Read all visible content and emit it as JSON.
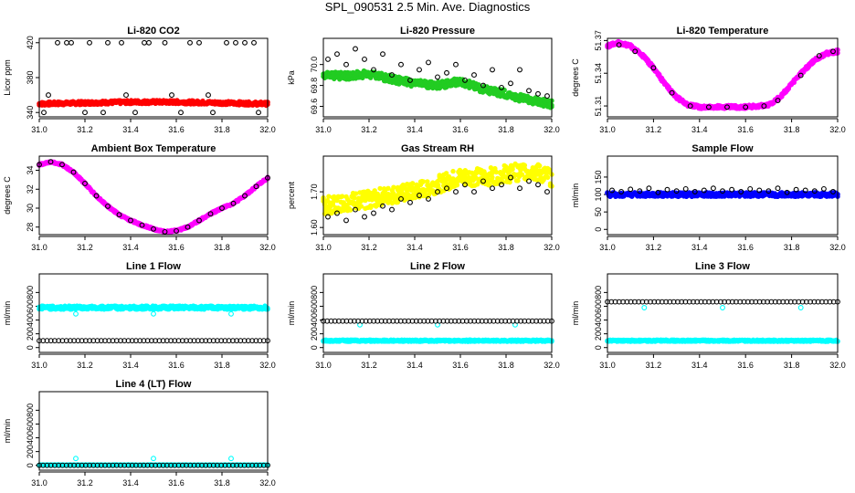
{
  "figure": {
    "title": "SPL_090531  2.5 Min. Ave. Diagnostics"
  },
  "colors": {
    "red": "#ff0000",
    "green": "#22cc22",
    "magenta": "#ff00ff",
    "yellow": "#ffff00",
    "blue": "#0000ff",
    "cyan": "#00ffff",
    "black": "#000000"
  },
  "chart_data": [
    {
      "type": "scatter",
      "title": "Li-820 CO2",
      "ylabel": "Licor ppm",
      "xlim": [
        31.0,
        32.0
      ],
      "ylim": [
        335,
        425
      ],
      "xticks": [
        "31.0",
        "31.2",
        "31.4",
        "31.6",
        "31.8",
        "32.0"
      ],
      "yticks": [
        {
          "v": 340,
          "t": "340"
        },
        {
          "v": 380,
          "t": "380"
        },
        {
          "v": 420,
          "t": "420"
        }
      ],
      "series": [
        {
          "color": "red",
          "style": "dense",
          "x": [
            31.0,
            31.2,
            31.4,
            31.6,
            31.8,
            32.0
          ],
          "y": [
            350,
            351,
            352,
            352,
            351,
            350
          ],
          "spread": 2
        },
        {
          "color": "black",
          "style": "points",
          "x": [
            31.02,
            31.08,
            31.14,
            31.22,
            31.28,
            31.36,
            31.42,
            31.48,
            31.55,
            31.62,
            31.7,
            31.76,
            31.82,
            31.9,
            31.96,
            31.04,
            31.12,
            31.2,
            31.3,
            31.38,
            31.46,
            31.58,
            31.66,
            31.74,
            31.86,
            31.94
          ],
          "y": [
            340,
            420,
            420,
            420,
            340,
            420,
            340,
            420,
            420,
            340,
            420,
            340,
            420,
            420,
            340,
            360,
            420,
            340,
            420,
            360,
            420,
            360,
            420,
            360,
            420,
            420
          ]
        }
      ]
    },
    {
      "type": "scatter",
      "title": "Li-820 Pressure",
      "ylabel": "kPa",
      "xlim": [
        31.0,
        32.0
      ],
      "ylim": [
        69.5,
        70.25
      ],
      "xticks": [
        "31.0",
        "31.2",
        "31.4",
        "31.6",
        "31.8",
        "32.0"
      ],
      "yticks": [
        {
          "v": 69.6,
          "t": "69.6"
        },
        {
          "v": 69.8,
          "t": "69.8"
        },
        {
          "v": 70.0,
          "t": "70.0"
        }
      ],
      "series": [
        {
          "color": "green",
          "style": "dense",
          "x": [
            31.0,
            31.1,
            31.2,
            31.3,
            31.4,
            31.5,
            31.6,
            31.7,
            31.8,
            31.9,
            32.0
          ],
          "y": [
            69.9,
            69.89,
            69.91,
            69.86,
            69.82,
            69.8,
            69.84,
            69.76,
            69.72,
            69.66,
            69.62
          ],
          "spread": 0.035
        },
        {
          "color": "black",
          "style": "points",
          "x": [
            31.02,
            31.06,
            31.1,
            31.14,
            31.18,
            31.22,
            31.26,
            31.3,
            31.34,
            31.38,
            31.42,
            31.46,
            31.5,
            31.54,
            31.58,
            31.62,
            31.66,
            31.7,
            31.74,
            31.78,
            31.82,
            31.86,
            31.9,
            31.94,
            31.98
          ],
          "y": [
            70.05,
            70.1,
            70.0,
            70.15,
            70.05,
            69.95,
            70.1,
            69.9,
            70.0,
            69.85,
            69.95,
            70.02,
            69.88,
            69.92,
            70.0,
            69.85,
            69.9,
            69.8,
            69.95,
            69.78,
            69.82,
            69.95,
            69.75,
            69.72,
            69.7
          ]
        }
      ]
    },
    {
      "type": "scatter",
      "title": "Li-820 Temperature",
      "ylabel": "degrees C",
      "xlim": [
        31.0,
        32.0
      ],
      "ylim": [
        51.3,
        51.372
      ],
      "xticks": [
        "31.0",
        "31.2",
        "31.4",
        "31.6",
        "31.8",
        "32.0"
      ],
      "yticks": [
        {
          "v": 51.31,
          "t": "51.31"
        },
        {
          "v": 51.34,
          "t": "51.34"
        },
        {
          "v": 51.37,
          "t": "51.37"
        }
      ],
      "series": [
        {
          "color": "magenta",
          "style": "dense",
          "x": [
            31.0,
            31.05,
            31.1,
            31.15,
            31.2,
            31.25,
            31.3,
            31.35,
            31.4,
            31.5,
            31.6,
            31.7,
            31.75,
            31.8,
            31.85,
            31.9,
            31.95,
            32.0
          ],
          "y": [
            51.365,
            51.368,
            51.365,
            51.357,
            51.345,
            51.33,
            51.318,
            51.311,
            51.309,
            51.309,
            51.309,
            51.311,
            51.318,
            51.33,
            51.342,
            51.352,
            51.358,
            51.36
          ],
          "spread": 0.0015
        },
        {
          "color": "black",
          "style": "points",
          "x": [
            31.05,
            31.12,
            31.2,
            31.28,
            31.36,
            31.44,
            31.52,
            31.6,
            31.68,
            31.74,
            31.84,
            31.92,
            31.98
          ],
          "y": [
            51.366,
            51.36,
            51.345,
            51.322,
            51.31,
            51.309,
            51.309,
            51.309,
            51.31,
            51.315,
            51.338,
            51.356,
            51.36
          ]
        }
      ]
    },
    {
      "type": "scatter",
      "title": "Ambient Box Temperature",
      "ylabel": "degrees C",
      "xlim": [
        31.0,
        32.0
      ],
      "ylim": [
        27.2,
        35.5
      ],
      "xticks": [
        "31.0",
        "31.2",
        "31.4",
        "31.6",
        "31.8",
        "32.0"
      ],
      "yticks": [
        {
          "v": 28,
          "t": "28"
        },
        {
          "v": 30,
          "t": "30"
        },
        {
          "v": 32,
          "t": "32"
        },
        {
          "v": 34,
          "t": "34"
        }
      ],
      "series": [
        {
          "color": "magenta",
          "style": "dense",
          "x": [
            31.0,
            31.05,
            31.1,
            31.15,
            31.2,
            31.25,
            31.3,
            31.35,
            31.4,
            31.45,
            31.5,
            31.55,
            31.6,
            31.65,
            31.7,
            31.75,
            31.8,
            31.85,
            31.9,
            31.95,
            32.0
          ],
          "y": [
            34.6,
            34.9,
            34.6,
            33.8,
            32.6,
            31.3,
            30.2,
            29.3,
            28.7,
            28.2,
            27.8,
            27.5,
            27.6,
            28.0,
            28.7,
            29.4,
            30.0,
            30.5,
            31.3,
            32.3,
            33.2
          ],
          "spread": 0.1
        },
        {
          "color": "black",
          "style": "points",
          "x": [
            31.0,
            31.05,
            31.1,
            31.15,
            31.2,
            31.25,
            31.3,
            31.35,
            31.4,
            31.45,
            31.5,
            31.55,
            31.6,
            31.65,
            31.7,
            31.75,
            31.8,
            31.85,
            31.9,
            31.95,
            32.0
          ],
          "y": [
            34.6,
            34.9,
            34.6,
            33.8,
            32.6,
            31.3,
            30.2,
            29.3,
            28.7,
            28.2,
            27.8,
            27.5,
            27.6,
            28.0,
            28.7,
            29.4,
            30.0,
            30.5,
            31.3,
            32.3,
            33.2
          ]
        }
      ]
    },
    {
      "type": "scatter",
      "title": "Gas Stream RH",
      "ylabel": "percent",
      "xlim": [
        31.0,
        32.0
      ],
      "ylim": [
        1.58,
        1.8
      ],
      "xticks": [
        "31.0",
        "31.2",
        "31.4",
        "31.6",
        "31.8",
        "32.0"
      ],
      "yticks": [
        {
          "v": 1.6,
          "t": "1.60"
        },
        {
          "v": 1.7,
          "t": "1.70"
        }
      ],
      "series": [
        {
          "color": "yellow",
          "style": "dense",
          "x": [
            31.0,
            31.1,
            31.2,
            31.3,
            31.4,
            31.5,
            31.6,
            31.7,
            31.8,
            31.9,
            32.0
          ],
          "y": [
            1.66,
            1.67,
            1.68,
            1.69,
            1.7,
            1.72,
            1.74,
            1.74,
            1.75,
            1.76,
            1.74
          ],
          "spread": 0.025
        },
        {
          "color": "black",
          "style": "points",
          "x": [
            31.02,
            31.06,
            31.1,
            31.14,
            31.18,
            31.22,
            31.26,
            31.3,
            31.34,
            31.38,
            31.42,
            31.46,
            31.5,
            31.54,
            31.58,
            31.62,
            31.66,
            31.7,
            31.74,
            31.78,
            31.82,
            31.86,
            31.9,
            31.94,
            31.98
          ],
          "y": [
            1.63,
            1.64,
            1.62,
            1.65,
            1.63,
            1.64,
            1.66,
            1.65,
            1.68,
            1.67,
            1.69,
            1.68,
            1.7,
            1.71,
            1.7,
            1.72,
            1.7,
            1.73,
            1.71,
            1.72,
            1.74,
            1.71,
            1.73,
            1.72,
            1.7
          ]
        }
      ]
    },
    {
      "type": "scatter",
      "title": "Sample Flow",
      "ylabel": "ml/min",
      "xlim": [
        31.0,
        32.0
      ],
      "ylim": [
        -15,
        210
      ],
      "xticks": [
        "31.0",
        "31.2",
        "31.4",
        "31.6",
        "31.8",
        "32.0"
      ],
      "yticks": [
        {
          "v": 0,
          "t": "0"
        },
        {
          "v": 50,
          "t": "50"
        },
        {
          "v": 100,
          "t": "100"
        },
        {
          "v": 150,
          "t": "150"
        }
      ],
      "series": [
        {
          "color": "blue",
          "style": "dense",
          "x": [
            31.0,
            32.0
          ],
          "y": [
            100,
            100
          ],
          "spread": 6
        },
        {
          "color": "black",
          "style": "points",
          "x": [
            31.02,
            31.06,
            31.1,
            31.14,
            31.18,
            31.22,
            31.26,
            31.3,
            31.34,
            31.38,
            31.42,
            31.46,
            31.5,
            31.54,
            31.58,
            31.62,
            31.66,
            31.7,
            31.74,
            31.78,
            31.82,
            31.86,
            31.9,
            31.94,
            31.98
          ],
          "y": [
            112,
            108,
            115,
            110,
            118,
            106,
            114,
            110,
            116,
            108,
            112,
            118,
            110,
            114,
            108,
            116,
            112,
            110,
            118,
            106,
            114,
            112,
            110,
            116,
            108
          ]
        }
      ]
    },
    {
      "type": "scatter",
      "title": "Line 1 Flow",
      "ylabel": "ml/min",
      "xlim": [
        31.0,
        32.0
      ],
      "ylim": [
        -70,
        1070
      ],
      "xticks": [
        "31.0",
        "31.2",
        "31.4",
        "31.6",
        "31.8",
        "32.0"
      ],
      "yticks": [
        {
          "v": 0,
          "t": "0"
        },
        {
          "v": 200,
          "t": "200"
        },
        {
          "v": 400,
          "t": "400"
        },
        {
          "v": 600,
          "t": "600"
        },
        {
          "v": 800,
          "t": "800"
        }
      ],
      "series": [
        {
          "color": "cyan",
          "style": "dense",
          "x": [
            31.0,
            32.0
          ],
          "y": [
            580,
            580
          ],
          "spread": 25
        },
        {
          "color": "cyan",
          "style": "points",
          "x": [
            31.16,
            31.5,
            31.84
          ],
          "y": [
            490,
            490,
            490
          ]
        },
        {
          "color": "black",
          "style": "row",
          "x": [
            31.0,
            32.0
          ],
          "y": [
            100,
            100
          ]
        }
      ]
    },
    {
      "type": "scatter",
      "title": "Line 2 Flow",
      "ylabel": "ml/min",
      "xlim": [
        31.0,
        32.0
      ],
      "ylim": [
        -70,
        1070
      ],
      "xticks": [
        "31.0",
        "31.2",
        "31.4",
        "31.6",
        "31.8",
        "32.0"
      ],
      "yticks": [
        {
          "v": 0,
          "t": "0"
        },
        {
          "v": 200,
          "t": "200"
        },
        {
          "v": 400,
          "t": "400"
        },
        {
          "v": 600,
          "t": "600"
        },
        {
          "v": 800,
          "t": "800"
        }
      ],
      "series": [
        {
          "color": "cyan",
          "style": "dense",
          "x": [
            31.0,
            32.0
          ],
          "y": [
            100,
            100
          ],
          "spread": 12
        },
        {
          "color": "cyan",
          "style": "points",
          "x": [
            31.16,
            31.5,
            31.84
          ],
          "y": [
            330,
            330,
            330
          ]
        },
        {
          "color": "black",
          "style": "row",
          "x": [
            31.0,
            32.0
          ],
          "y": [
            385,
            385
          ]
        }
      ]
    },
    {
      "type": "scatter",
      "title": "Line 3 Flow",
      "ylabel": "ml/min",
      "xlim": [
        31.0,
        32.0
      ],
      "ylim": [
        -70,
        1070
      ],
      "xticks": [
        "31.0",
        "31.2",
        "31.4",
        "31.6",
        "31.8",
        "32.0"
      ],
      "yticks": [
        {
          "v": 0,
          "t": "0"
        },
        {
          "v": 200,
          "t": "200"
        },
        {
          "v": 400,
          "t": "400"
        },
        {
          "v": 600,
          "t": "600"
        },
        {
          "v": 800,
          "t": "800"
        }
      ],
      "series": [
        {
          "color": "cyan",
          "style": "dense",
          "x": [
            31.0,
            32.0
          ],
          "y": [
            100,
            100
          ],
          "spread": 12
        },
        {
          "color": "cyan",
          "style": "points",
          "x": [
            31.16,
            31.5,
            31.84
          ],
          "y": [
            580,
            580,
            580
          ]
        },
        {
          "color": "black",
          "style": "row",
          "x": [
            31.0,
            32.0
          ],
          "y": [
            665,
            665
          ]
        }
      ]
    },
    {
      "type": "scatter",
      "title": "Line 4 (LT) Flow",
      "ylabel": "ml/min",
      "xlim": [
        31.0,
        32.0
      ],
      "ylim": [
        -70,
        1070
      ],
      "xticks": [
        "31.0",
        "31.2",
        "31.4",
        "31.6",
        "31.8",
        "32.0"
      ],
      "yticks": [
        {
          "v": 0,
          "t": "0"
        },
        {
          "v": 200,
          "t": "200"
        },
        {
          "v": 400,
          "t": "400"
        },
        {
          "v": 600,
          "t": "600"
        },
        {
          "v": 800,
          "t": "800"
        }
      ],
      "series": [
        {
          "color": "cyan",
          "style": "dense",
          "x": [
            31.0,
            32.0
          ],
          "y": [
            5,
            5
          ],
          "spread": 4
        },
        {
          "color": "cyan",
          "style": "points",
          "x": [
            31.16,
            31.5,
            31.84
          ],
          "y": [
            100,
            100,
            100
          ]
        },
        {
          "color": "black",
          "style": "row",
          "x": [
            31.0,
            32.0
          ],
          "y": [
            0,
            0
          ]
        }
      ]
    }
  ]
}
